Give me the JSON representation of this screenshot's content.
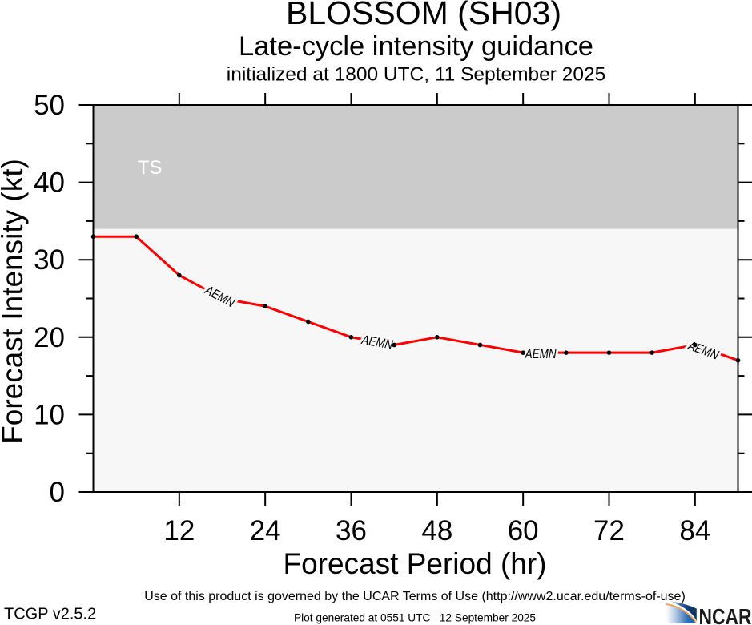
{
  "header": {
    "title": "BLOSSOM (SH03)",
    "subtitle": "Late-cycle intensity guidance",
    "init_line": "initialized at 1800 UTC, 11 September 2025"
  },
  "footer": {
    "terms": "Use of this product is governed by the UCAR Terms of Use (http://www2.ucar.edu/terms-of-use)",
    "version": "TCGP v2.5.2",
    "generated": "Plot generated at 0551 UTC   12 September 2025",
    "ncar_logo_text": "NCAR"
  },
  "chart_data": {
    "type": "line",
    "title": "BLOSSOM (SH03)",
    "subtitle": "Late-cycle intensity guidance",
    "init_line": "initialized at 1800 UTC, 11 September 2025",
    "xlabel": "Forecast Period (hr)",
    "ylabel": "Forecast Intensity (kt)",
    "xlim": [
      0,
      90
    ],
    "ylim": [
      0,
      50
    ],
    "xticks_major": [
      12,
      24,
      36,
      48,
      60,
      72,
      84
    ],
    "yticks_major": [
      0,
      10,
      20,
      30,
      40,
      50
    ],
    "yticks_minor": [
      5,
      15,
      25,
      35,
      45
    ],
    "grid": false,
    "plot_bg_color": "#f7f7f7",
    "shaded_band": {
      "from": 34,
      "to": 50,
      "color": "#cbcbcb",
      "label": "TS",
      "label_color": "#ffffff",
      "label_hr": 7.9,
      "label_kt": 41.95
    },
    "series": [
      {
        "name": "AEMN",
        "color": "#ff0000",
        "marker": "circle",
        "marker_color": "#000000",
        "x": [
          0,
          6,
          12,
          18,
          24,
          30,
          36,
          42,
          48,
          54,
          60,
          66,
          72,
          78,
          84,
          90
        ],
        "values": [
          33,
          33,
          28,
          25,
          24,
          22,
          20,
          19,
          20,
          19,
          18,
          18,
          18,
          18,
          19,
          17
        ],
        "marker_skip_x": [
          18
        ]
      }
    ],
    "line_labels": [
      {
        "text": "AEMN",
        "hr": 17.7,
        "kt": 25.3,
        "angle": 28
      },
      {
        "text": "AEMN",
        "hr": 39.65,
        "kt": 19.4,
        "angle": 10
      },
      {
        "text": "AEMN",
        "hr": 62.45,
        "kt": 17.9,
        "angle": 0
      },
      {
        "text": "AEMN",
        "hr": 85.2,
        "kt": 18.35,
        "angle": 20
      }
    ]
  }
}
